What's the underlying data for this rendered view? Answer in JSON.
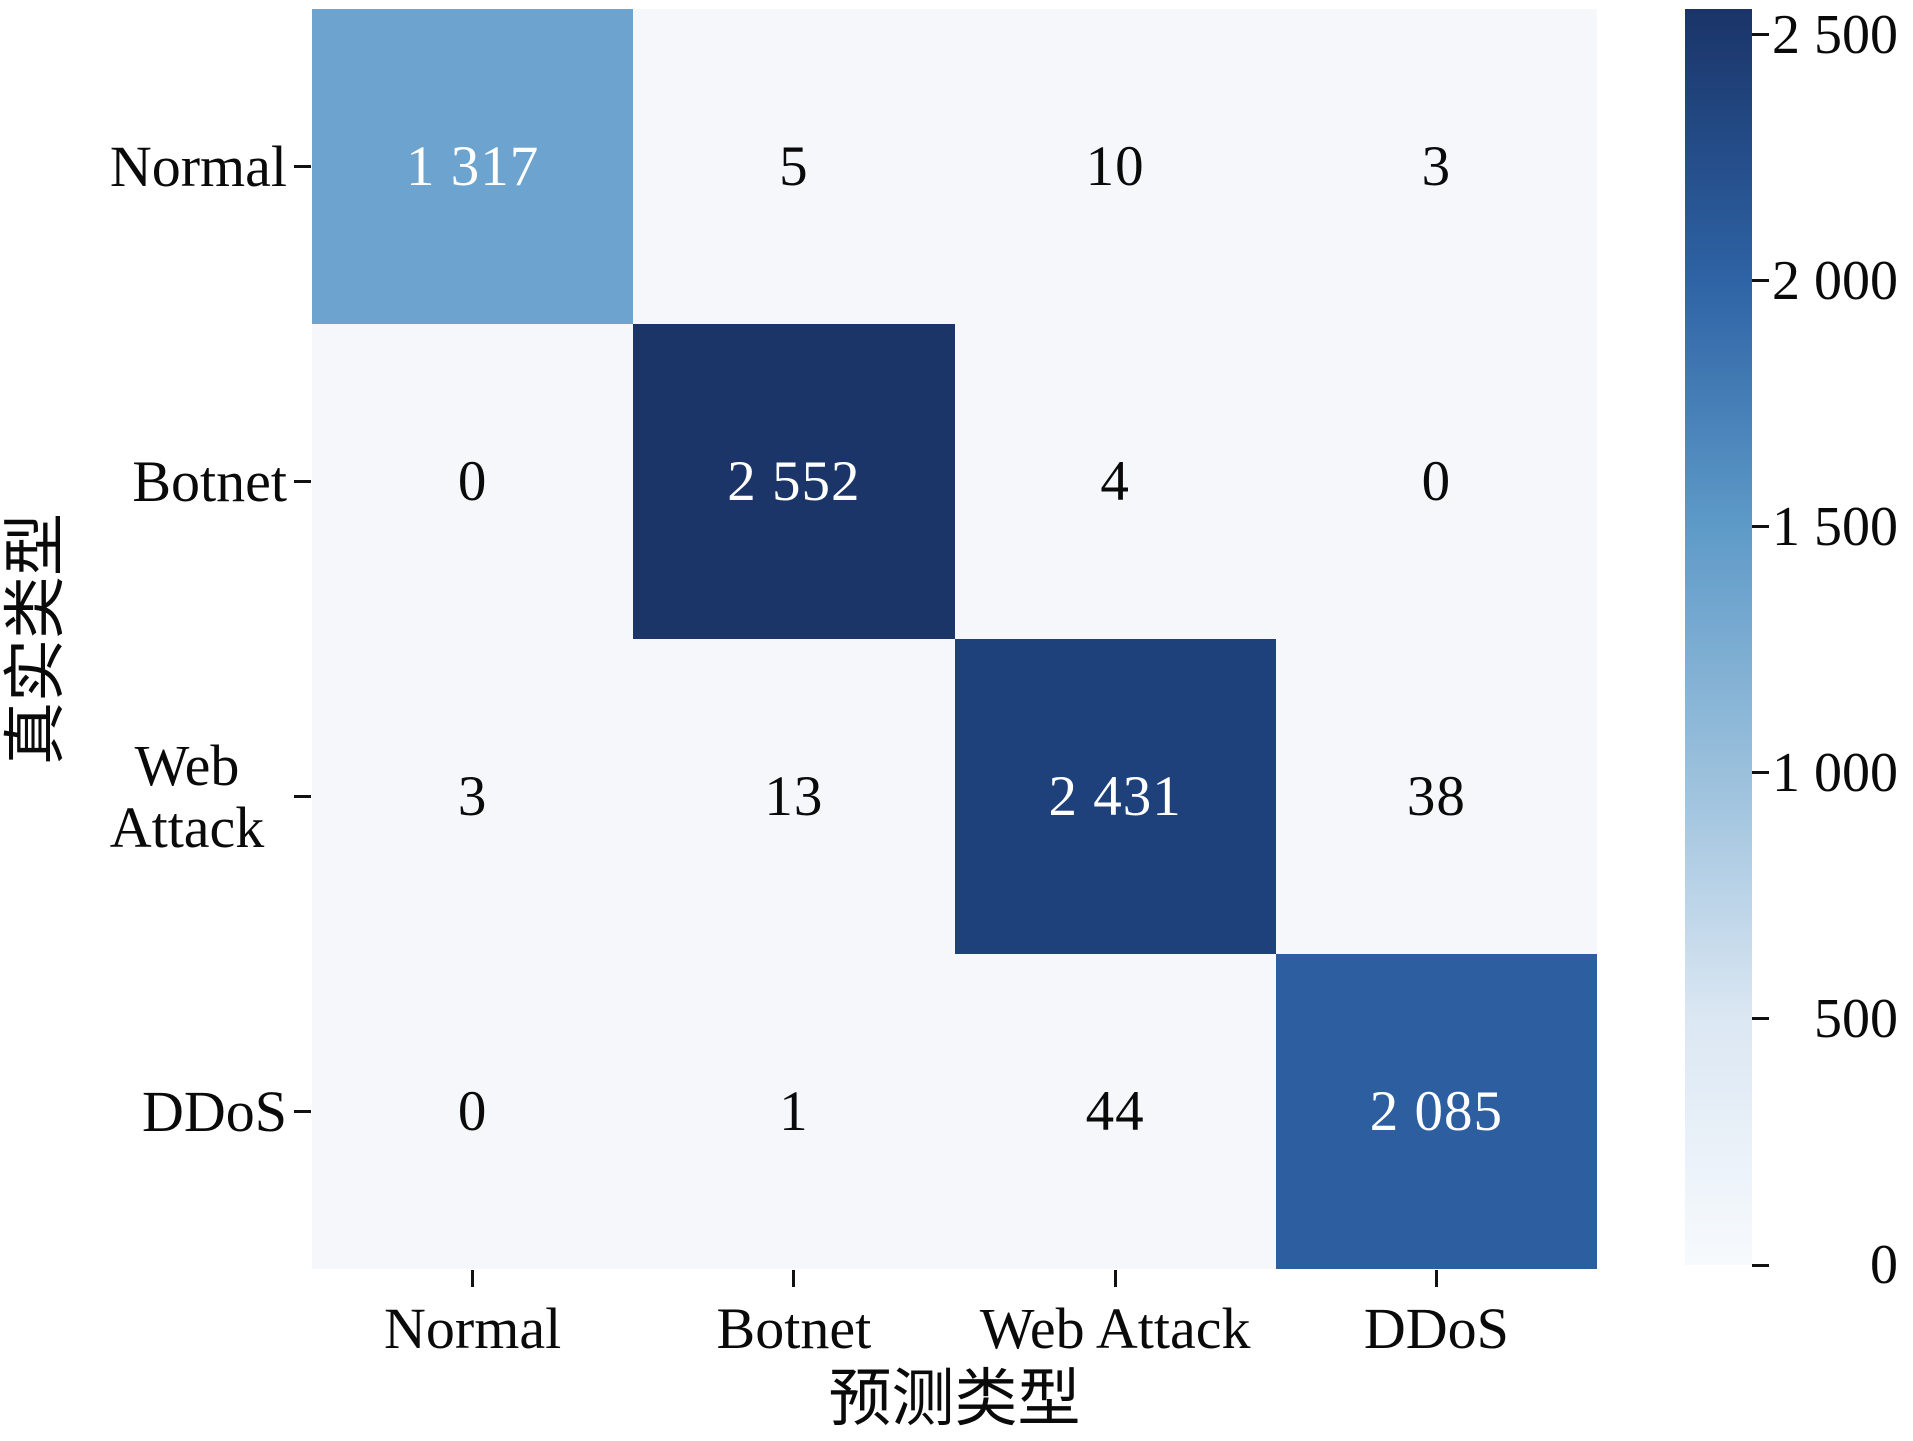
{
  "chart_data": {
    "type": "heatmap",
    "title": "",
    "xlabel": "预测类型",
    "ylabel": "真实类型",
    "categories": [
      "Normal",
      "Botnet",
      "Web Attack",
      "DDoS"
    ],
    "x_tick_labels": [
      "Normal",
      "Botnet",
      "Web Attack",
      "DDoS"
    ],
    "y_tick_labels": [
      "Normal",
      "Botnet",
      "Web\nAttack",
      "DDoS"
    ],
    "matrix": [
      [
        1317,
        5,
        10,
        3
      ],
      [
        0,
        2552,
        4,
        0
      ],
      [
        3,
        13,
        2431,
        38
      ],
      [
        0,
        1,
        44,
        2085
      ]
    ],
    "cell_display": [
      [
        "1 317",
        "5",
        "10",
        "3"
      ],
      [
        "0",
        "2 552",
        "4",
        "0"
      ],
      [
        "3",
        "13",
        "2 431",
        "38"
      ],
      [
        "0",
        "1",
        "44",
        "2 085"
      ]
    ],
    "vmin": 0,
    "vmax": 2552,
    "colormap": "Blues",
    "colorbar_ticks": [
      2500,
      2000,
      1500,
      1000,
      500,
      0
    ],
    "colorbar_tick_labels": [
      "2 500",
      "2 000",
      "1 500",
      "1 000",
      "500",
      "0"
    ],
    "legend_position": "right",
    "grid": false,
    "colors": {
      "diag_cells": [
        "#6da3cf",
        "#1b3569",
        "#1e417b",
        "#2d5fa0"
      ],
      "offdiag_cell": "#f5f7fa",
      "value_on_dark": "#ffffff",
      "value_on_light": "#0a0a0a",
      "tick": "#111111",
      "colorbar_gradient_top_to_bottom": [
        [
          "0%",
          "#1a3468"
        ],
        [
          "21.6%",
          "#2e63a5"
        ],
        [
          "41.2%",
          "#5e9ac8"
        ],
        [
          "60.8%",
          "#9ac0dc"
        ],
        [
          "80.4%",
          "#dbe7f3"
        ],
        [
          "100%",
          "#f7fafd"
        ]
      ]
    }
  }
}
